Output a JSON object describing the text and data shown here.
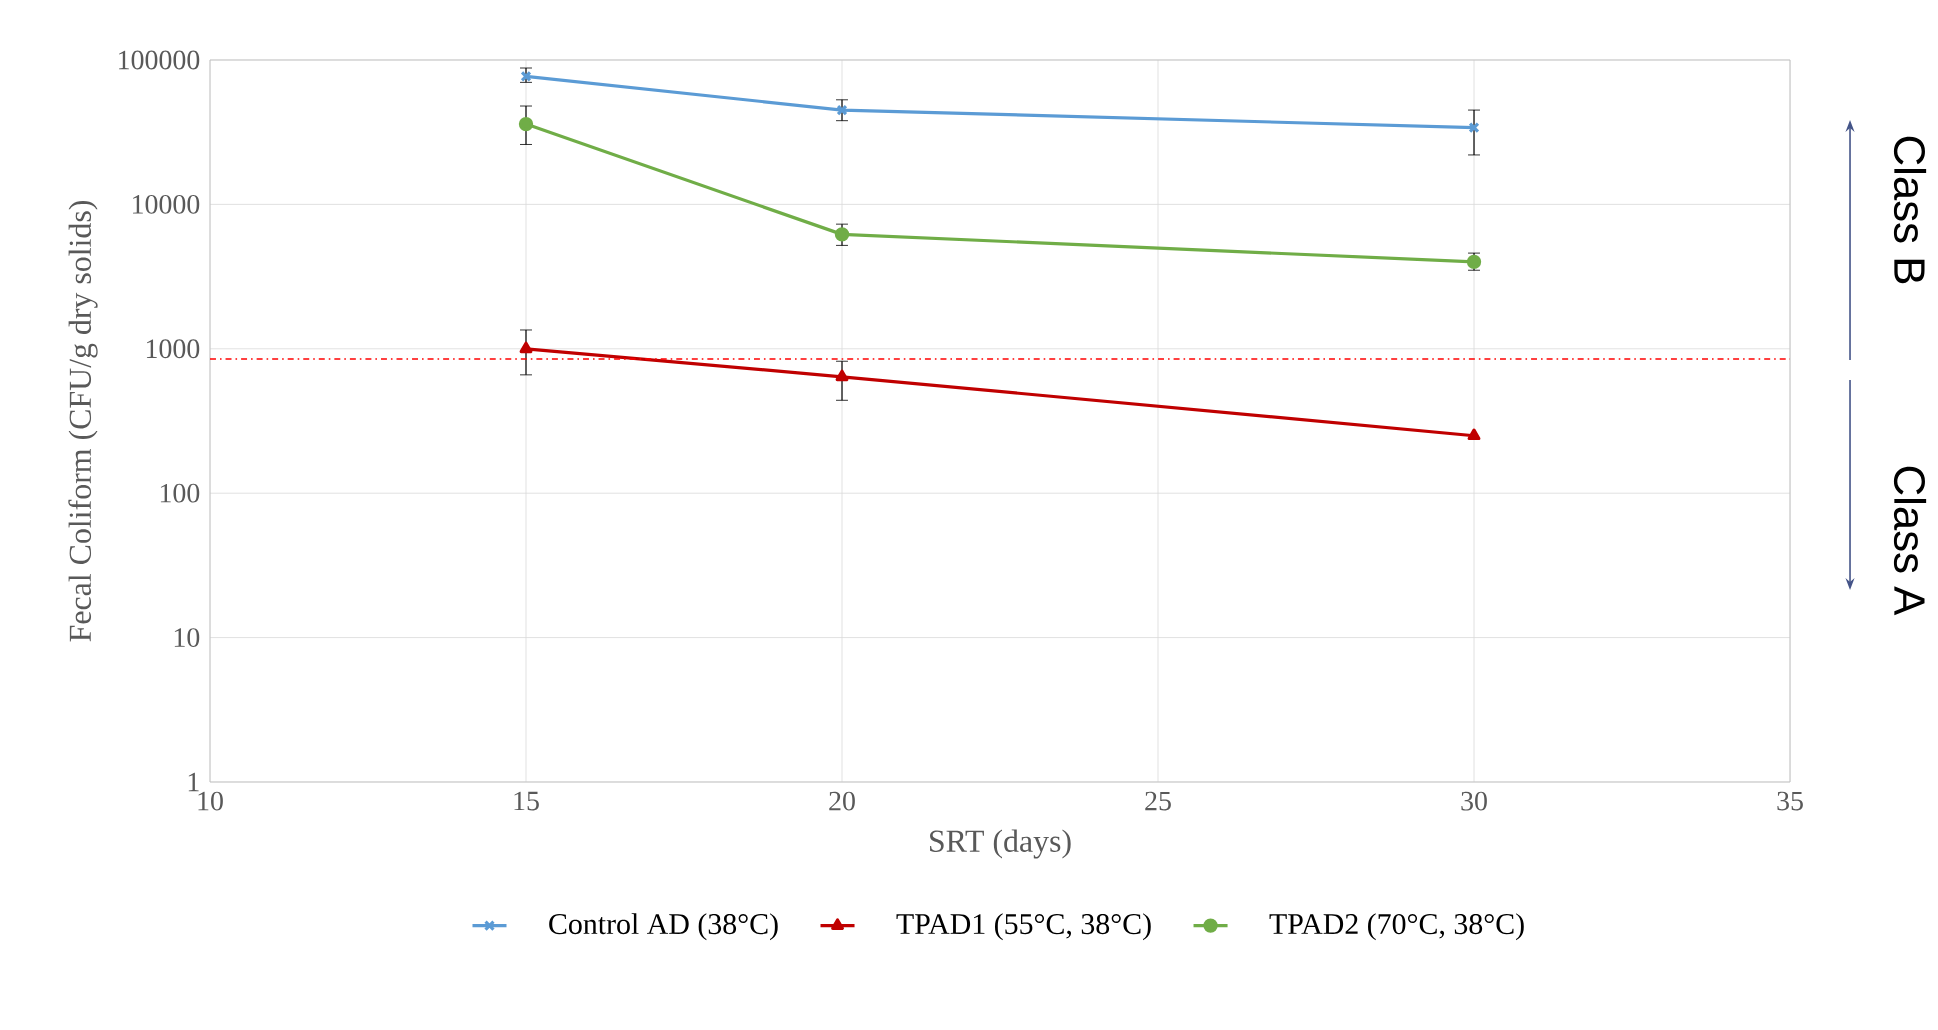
{
  "chart_data": {
    "type": "line",
    "xlabel": "SRT (days)",
    "ylabel": "Fecal Coliform (CFU/g dry solids)",
    "xlim": [
      10,
      35
    ],
    "xticks": [
      10,
      15,
      20,
      25,
      30,
      35
    ],
    "ylim": [
      1,
      100000
    ],
    "yticks": [
      1,
      10,
      100,
      1000,
      10000,
      100000
    ],
    "log": "y",
    "grid": true,
    "legend": "bottom",
    "series": [
      {
        "name": "Control AD (38°C)",
        "color": "#5b9bd5",
        "marker": "cross",
        "x": [
          15,
          20,
          30
        ],
        "values": [
          77000,
          45000,
          34000
        ],
        "errors": [
          [
            70000,
            88000
          ],
          [
            38000,
            53000
          ],
          [
            22000,
            45000
          ]
        ]
      },
      {
        "name": "TPAD1 (55°C, 38°C)",
        "color": "#c00000",
        "marker": "triangle",
        "x": [
          15,
          20,
          30
        ],
        "values": [
          1000,
          640,
          250
        ],
        "errors": [
          [
            660,
            1350
          ],
          [
            440,
            820
          ],
          null
        ]
      },
      {
        "name": "TPAD2 (70°C, 38°C)",
        "color": "#70ad47",
        "marker": "circle",
        "x": [
          15,
          20,
          30
        ],
        "values": [
          36000,
          6200,
          4000
        ],
        "errors": [
          [
            26000,
            48000
          ],
          [
            5200,
            7300
          ],
          [
            3500,
            4600
          ]
        ]
      }
    ],
    "ref_lines": [
      {
        "axis": "y",
        "value": 850,
        "color": "#ff0000",
        "line_style": "dashdot"
      }
    ],
    "annotations": [
      "Class B",
      "Class A"
    ]
  }
}
